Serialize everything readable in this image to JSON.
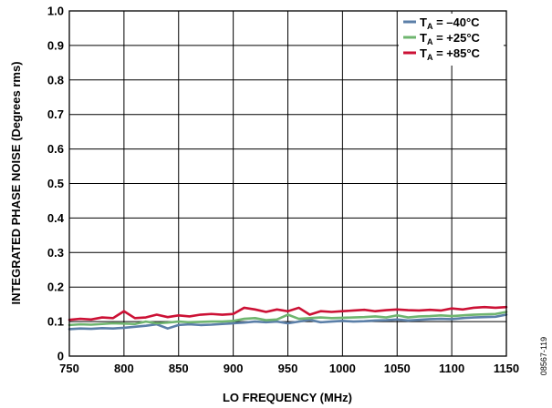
{
  "chart_data": {
    "type": "line",
    "title": "",
    "xlabel": "LO FREQUENCY (MHz)",
    "ylabel": "INTEGRATED PHASE NOISE (Degrees rms)",
    "xlim": [
      750,
      1150
    ],
    "ylim": [
      0,
      1.0
    ],
    "xticks": [
      750,
      800,
      850,
      900,
      950,
      1000,
      1050,
      1100,
      1150
    ],
    "xtick_labels": [
      "750",
      "800",
      "850",
      "900",
      "950",
      "1000",
      "1050",
      "1100",
      "1150"
    ],
    "yticks": [
      0,
      0.1,
      0.2,
      0.3,
      0.4,
      0.5,
      0.6,
      0.7,
      0.8,
      0.9,
      1.0
    ],
    "ytick_labels": [
      "0",
      "0.1",
      "0.2",
      "0.3",
      "0.4",
      "0.5",
      "0.6",
      "0.7",
      "0.8",
      "0.9",
      "1.0"
    ],
    "grid": true,
    "legend_position": "top-right",
    "figure_id": "08567-119",
    "x": [
      750,
      760,
      770,
      780,
      790,
      800,
      810,
      820,
      830,
      840,
      850,
      860,
      870,
      880,
      890,
      900,
      910,
      920,
      930,
      940,
      950,
      960,
      970,
      980,
      990,
      1000,
      1010,
      1020,
      1030,
      1040,
      1050,
      1060,
      1070,
      1080,
      1090,
      1100,
      1110,
      1120,
      1130,
      1140,
      1150
    ],
    "series": [
      {
        "name": "T_A = –40°C",
        "legend_main": "T",
        "legend_sub": "A",
        "legend_rest": " = –40°C",
        "color": "#5b7fa8",
        "values": [
          0.078,
          0.08,
          0.079,
          0.081,
          0.08,
          0.082,
          0.085,
          0.088,
          0.092,
          0.08,
          0.09,
          0.092,
          0.09,
          0.091,
          0.093,
          0.095,
          0.097,
          0.1,
          0.098,
          0.1,
          0.095,
          0.1,
          0.105,
          0.098,
          0.1,
          0.102,
          0.1,
          0.101,
          0.103,
          0.104,
          0.106,
          0.103,
          0.105,
          0.107,
          0.108,
          0.107,
          0.11,
          0.112,
          0.113,
          0.114,
          0.12
        ]
      },
      {
        "name": "T_A = +25°C",
        "legend_main": "T",
        "legend_sub": "A",
        "legend_rest": " = +25°C",
        "color": "#6fb56f",
        "values": [
          0.09,
          0.092,
          0.091,
          0.093,
          0.095,
          0.094,
          0.093,
          0.1,
          0.095,
          0.097,
          0.1,
          0.098,
          0.099,
          0.1,
          0.1,
          0.102,
          0.108,
          0.11,
          0.104,
          0.106,
          0.12,
          0.108,
          0.11,
          0.112,
          0.11,
          0.111,
          0.112,
          0.113,
          0.115,
          0.112,
          0.118,
          0.112,
          0.115,
          0.116,
          0.118,
          0.116,
          0.118,
          0.12,
          0.121,
          0.122,
          0.128
        ]
      },
      {
        "name": "T_A = +85°C",
        "legend_main": "T",
        "legend_sub": "A",
        "legend_rest": " = +85°C",
        "color": "#cc1135",
        "values": [
          0.105,
          0.108,
          0.106,
          0.112,
          0.11,
          0.13,
          0.11,
          0.112,
          0.12,
          0.113,
          0.118,
          0.115,
          0.12,
          0.122,
          0.12,
          0.122,
          0.14,
          0.135,
          0.128,
          0.135,
          0.13,
          0.14,
          0.12,
          0.13,
          0.128,
          0.13,
          0.132,
          0.134,
          0.13,
          0.133,
          0.135,
          0.133,
          0.132,
          0.134,
          0.132,
          0.138,
          0.135,
          0.14,
          0.142,
          0.14,
          0.142
        ]
      }
    ]
  }
}
